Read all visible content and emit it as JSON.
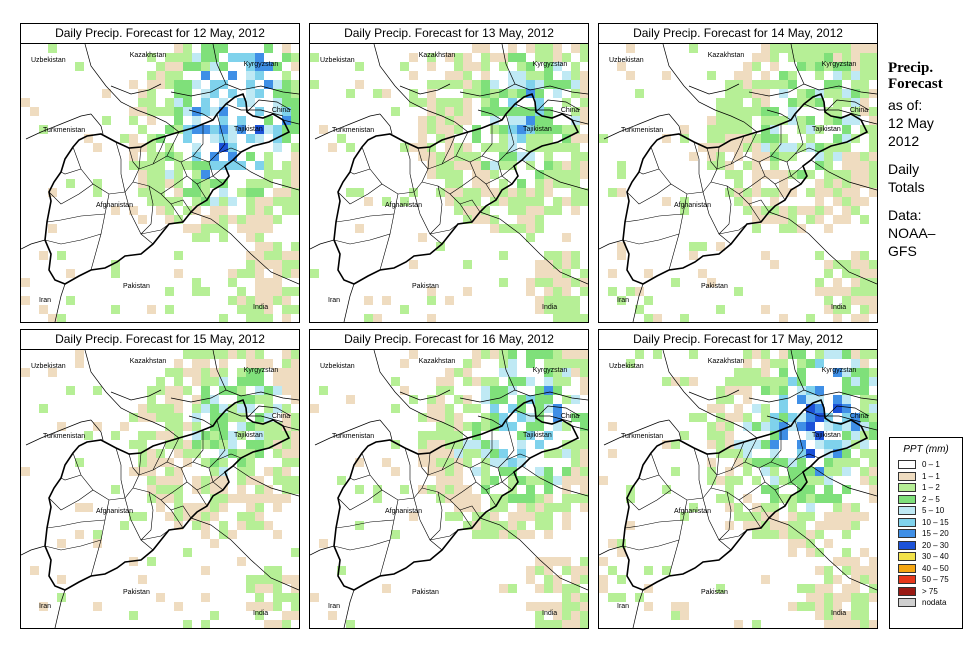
{
  "panels": [
    {
      "title": "Daily Precip. Forecast for  12 May, 2012",
      "intensity": 1.0,
      "seed": 11
    },
    {
      "title": "Daily Precip. Forecast for  13 May, 2012",
      "intensity": 0.6,
      "seed": 23
    },
    {
      "title": "Daily Precip. Forecast for  14 May, 2012",
      "intensity": 0.55,
      "seed": 37
    },
    {
      "title": "Daily Precip. Forecast for  15 May, 2012",
      "intensity": 0.5,
      "seed": 41
    },
    {
      "title": "Daily Precip. Forecast for  16 May, 2012",
      "intensity": 0.75,
      "seed": 53
    },
    {
      "title": "Daily Precip. Forecast for  17 May, 2012",
      "intensity": 0.9,
      "seed": 67
    }
  ],
  "map_labels": {
    "kazakhstan": "Kazakhstan",
    "uzbekistan": "Uzbekistan",
    "kyrgyzstan": "Kyrgyzstan",
    "china": "China",
    "turkmenistan": "Turkmenistan",
    "tajikistan": "Tajikistan",
    "afghanistan": "Afghanistan",
    "iran": "Iran",
    "pakistan": "Pakistan",
    "india": "India"
  },
  "side": {
    "heading_line1": "Precip.",
    "heading_line2": "Forecast",
    "asof": "as of:",
    "date_line1": "12 May",
    "date_line2": "2012",
    "totals_line1": "Daily",
    "totals_line2": "Totals",
    "data_line1": "Data:",
    "data_line2": "NOAA–",
    "data_line3": "GFS"
  },
  "legend": {
    "title": "PPT (mm)",
    "items": [
      {
        "label": "0 – 1",
        "color": "#ffffff"
      },
      {
        "label": "1 – 1",
        "color": "#efdcc0"
      },
      {
        "label": "1 – 2",
        "color": "#b6ef96"
      },
      {
        "label": "2 – 5",
        "color": "#7fe07a"
      },
      {
        "label": "5 – 10",
        "color": "#bfe9f4"
      },
      {
        "label": "10 – 15",
        "color": "#7fd2ec"
      },
      {
        "label": "15 – 20",
        "color": "#3f8fe6"
      },
      {
        "label": "20 – 30",
        "color": "#1c52d8"
      },
      {
        "label": "30 – 40",
        "color": "#f2e24a"
      },
      {
        "label": "40 – 50",
        "color": "#f5a612"
      },
      {
        "label": "50 – 75",
        "color": "#e6371a"
      },
      {
        "label": "> 75",
        "color": "#9a1a14"
      },
      {
        "label": "nodata",
        "color": "#cfcfcf"
      }
    ]
  }
}
